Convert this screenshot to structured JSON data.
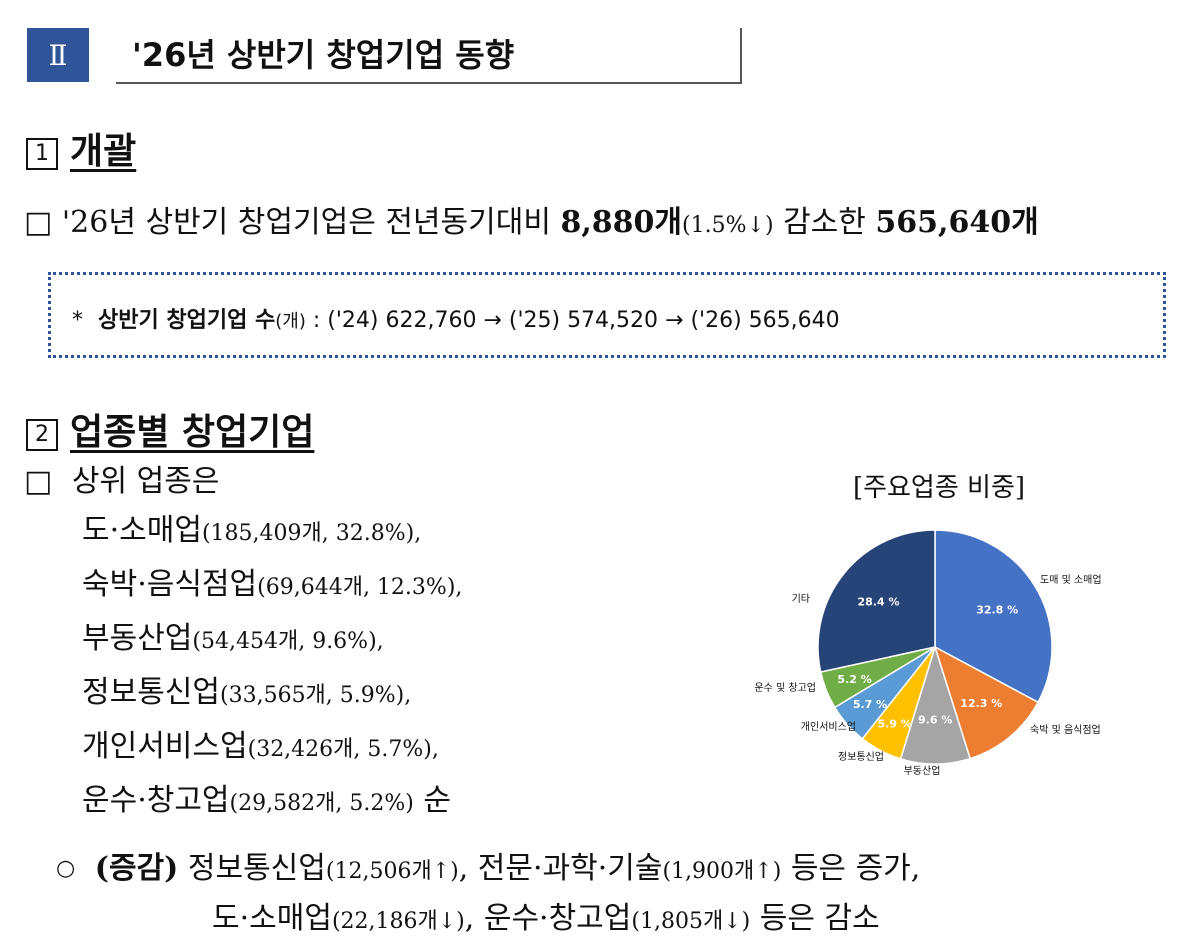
{
  "header": {
    "roman": "Ⅱ",
    "title": "'26년 상반기 창업기업 동향"
  },
  "section1": {
    "num": "1",
    "title": "개괄",
    "bullet": {
      "marker": "□",
      "text_prefix": "'26년 상반기 창업기업은 전년동기대비 ",
      "decrease_count": "8,880개",
      "decrease_pct": "(1.5%↓)",
      "text_mid": " 감소한 ",
      "total": "565,640개"
    },
    "note": {
      "star": "*",
      "label": "상반기 창업기업 수",
      "unit": "(개)",
      "series": ": ('24) 622,760 → ('25) 574,520 → ('26) 565,640"
    }
  },
  "section2": {
    "num": "2",
    "title": "업종별 창업기업",
    "bullet_marker": "□",
    "intro": "상위 업종은",
    "industries": [
      {
        "name": "도·소매업",
        "detail": "(185,409개, 32.8%),"
      },
      {
        "name": "숙박·음식점업",
        "detail": "(69,644개, 12.3%),"
      },
      {
        "name": "부동산업",
        "detail": "(54,454개, 9.6%),"
      },
      {
        "name": "정보통신업",
        "detail": "(33,565개, 5.9%),"
      },
      {
        "name": "개인서비스업",
        "detail": "(32,426개, 5.7%),"
      },
      {
        "name": "운수·창고업",
        "detail": "(29,582개, 5.2%)",
        "suffix": " 순"
      }
    ],
    "change": {
      "marker": "○",
      "label": "(증감)",
      "l1_a": " 정보통신업",
      "l1_a_detail": "(12,506개↑)",
      "l1_b": ", 전문·과학·기술",
      "l1_b_detail": "(1,900개↑)",
      "l1_c": " 등은 증가,",
      "l2_a": "도·소매업",
      "l2_a_detail": "(22,186개↓)",
      "l2_b": ", 운수·창고업",
      "l2_b_detail": "(1,805개↓)",
      "l2_c": " 등은 감소"
    }
  },
  "chart_data": {
    "type": "pie",
    "title": "[주요업종 비중]",
    "categories": [
      "도매 및 소매업",
      "숙박 및 음식점업",
      "부동산업",
      "정보통신업",
      "개인서비스업",
      "운수 및 창고업",
      "기타"
    ],
    "values": [
      32.8,
      12.3,
      9.6,
      5.9,
      5.7,
      5.2,
      28.4
    ],
    "data_labels": [
      "32.8 %",
      "12.3 %",
      "9.6 %",
      "5.9 %",
      "5.7 %",
      "5.2 %",
      "28.4 %"
    ],
    "colors": [
      "#4472c4",
      "#ed7d31",
      "#a5a5a5",
      "#ffc000",
      "#5b9bd5",
      "#70ad47",
      "#264478"
    ]
  }
}
